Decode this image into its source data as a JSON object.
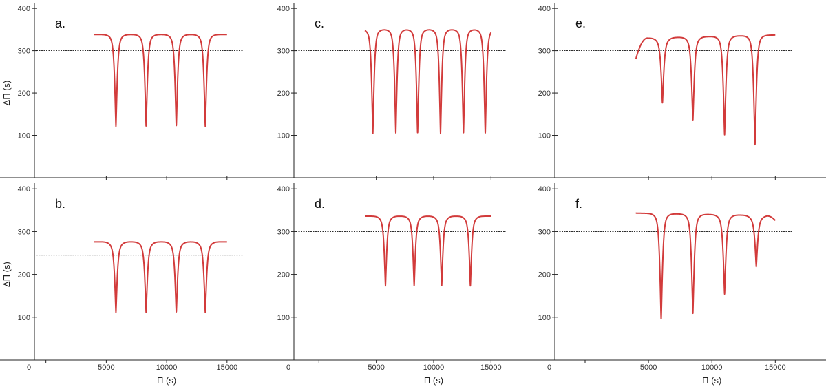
{
  "figure": {
    "colors": {
      "curve": "#d23b3b",
      "axis": "#222222",
      "reference_line": "#111111"
    }
  },
  "chart_data": [
    {
      "panel": "a.",
      "type": "line",
      "xlim": [
        -3800,
        19000
      ],
      "ylim": [
        0,
        410
      ],
      "yticks": [
        "100",
        "200",
        "300",
        "400"
      ],
      "ylabel": "ΔΠ (s)",
      "reference_y": 300,
      "series": [
        {
          "x_range": [
            4000,
            15000
          ],
          "baseline": 338,
          "plateau_tilt": 0,
          "dips": [
            {
              "x": 5800,
              "depth": 135
            },
            {
              "x": 8300,
              "depth": 135
            },
            {
              "x": 10800,
              "depth": 135
            },
            {
              "x": 13200,
              "depth": 135
            }
          ]
        }
      ]
    },
    {
      "panel": "c.",
      "type": "line",
      "xlim": [
        -3800,
        19000
      ],
      "ylim": [
        0,
        410
      ],
      "yticks": [
        "100",
        "200",
        "300",
        "400"
      ],
      "reference_y": 300,
      "series": [
        {
          "x_range": [
            4000,
            15000
          ],
          "baseline": 350,
          "plateau_tilt": 0,
          "dips": [
            {
              "x": 4700,
              "depth": 118
            },
            {
              "x": 6700,
              "depth": 118
            },
            {
              "x": 8600,
              "depth": 118
            },
            {
              "x": 10600,
              "depth": 118
            },
            {
              "x": 12600,
              "depth": 118
            },
            {
              "x": 14500,
              "depth": 118
            }
          ]
        }
      ]
    },
    {
      "panel": "e.",
      "type": "line",
      "xlim": [
        -3800,
        19000
      ],
      "ylim": [
        0,
        410
      ],
      "yticks": [
        "100",
        "200",
        "300",
        "400"
      ],
      "reference_y": 300,
      "series": [
        {
          "x_range": [
            4000,
            15000
          ],
          "baseline": 333,
          "plateau_tilt": 8,
          "start_y": 280,
          "dips": [
            {
              "x": 6100,
              "depth": 190
            },
            {
              "x": 8500,
              "depth": 148
            },
            {
              "x": 11000,
              "depth": 115
            },
            {
              "x": 13400,
              "depth": 90
            }
          ]
        }
      ]
    },
    {
      "panel": "b.",
      "type": "line",
      "xlim": [
        -3800,
        19000
      ],
      "ylim": [
        0,
        410
      ],
      "yticks": [
        "100",
        "200",
        "300",
        "400"
      ],
      "xticks": [
        0,
        5000,
        10000,
        15000
      ],
      "ylabel": "ΔΠ (s)",
      "xlabel": "Π (s)",
      "reference_y": 245,
      "series": [
        {
          "x_range": [
            4000,
            15000
          ],
          "baseline": 276,
          "plateau_tilt": 0,
          "dips": [
            {
              "x": 5800,
              "depth": 125
            },
            {
              "x": 8300,
              "depth": 125
            },
            {
              "x": 10800,
              "depth": 125
            },
            {
              "x": 13200,
              "depth": 125
            }
          ]
        }
      ]
    },
    {
      "panel": "d.",
      "type": "line",
      "xlim": [
        -3800,
        19000
      ],
      "ylim": [
        0,
        410
      ],
      "yticks": [
        "100",
        "200",
        "300",
        "400"
      ],
      "xticks": [
        0,
        5000,
        10000,
        15000
      ],
      "xlabel": "Π (s)",
      "reference_y": 300,
      "series": [
        {
          "x_range": [
            4000,
            15000
          ],
          "baseline": 336,
          "plateau_tilt": 0,
          "dips": [
            {
              "x": 5800,
              "depth": 187
            },
            {
              "x": 8300,
              "depth": 187
            },
            {
              "x": 10700,
              "depth": 187
            },
            {
              "x": 13200,
              "depth": 187
            }
          ]
        }
      ]
    },
    {
      "panel": "f.",
      "type": "line",
      "xlim": [
        -3800,
        19000
      ],
      "ylim": [
        0,
        410
      ],
      "yticks": [
        "100",
        "200",
        "300",
        "400"
      ],
      "xticks": [
        0,
        5000,
        10000,
        15000
      ],
      "xlabel": "Π (s)",
      "reference_y": 300,
      "series": [
        {
          "x_range": [
            4000,
            15000
          ],
          "baseline": 340,
          "plateau_tilt": -6,
          "end_y": 326,
          "dips": [
            {
              "x": 6000,
              "depth": 108
            },
            {
              "x": 8500,
              "depth": 122
            },
            {
              "x": 11000,
              "depth": 168
            },
            {
              "x": 13500,
              "depth": 232
            }
          ]
        }
      ]
    }
  ]
}
